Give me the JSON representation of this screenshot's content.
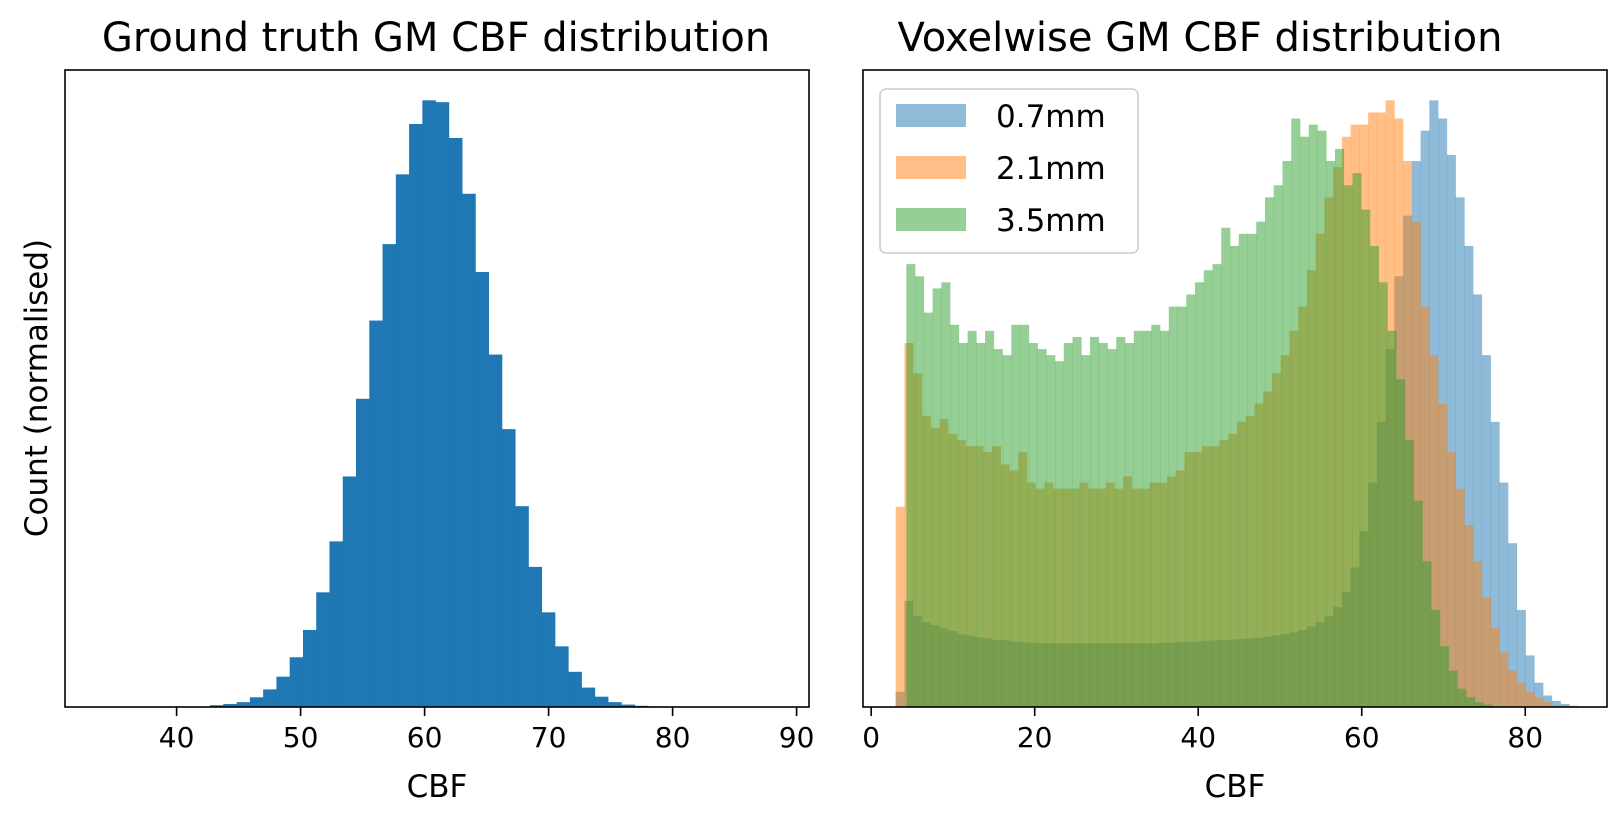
{
  "figure": {
    "colors": {
      "series_0": "#1f77b4",
      "series_1": "#ff7f0e",
      "series_2": "#2ca02c"
    }
  },
  "chart_data": [
    {
      "type": "bar",
      "title": "Ground truth GM CBF distribution",
      "xlabel": "CBF",
      "ylabel": "Count (normalised)",
      "xlim": [
        31,
        91
      ],
      "ylim": [
        0,
        1.05
      ],
      "xticks": [
        40,
        50,
        60,
        70,
        80,
        90
      ],
      "bin_width": 1.07,
      "grid": false,
      "series": [
        {
          "color": "#1f77b4",
          "alpha": 1.0,
          "bin_start": 42.7,
          "values": [
            0.003,
            0.005,
            0.008,
            0.016,
            0.029,
            0.05,
            0.082,
            0.127,
            0.189,
            0.273,
            0.38,
            0.508,
            0.637,
            0.763,
            0.878,
            0.961,
            1.0,
            0.997,
            0.938,
            0.846,
            0.717,
            0.581,
            0.458,
            0.331,
            0.231,
            0.156,
            0.1,
            0.058,
            0.032,
            0.017,
            0.008,
            0.004,
            0.002,
            0.001
          ]
        }
      ]
    },
    {
      "type": "bar",
      "title": "Voxelwise GM CBF distribution",
      "xlabel": "CBF",
      "ylabel": "",
      "xlim": [
        -1,
        90
      ],
      "ylim": [
        0,
        1.05
      ],
      "xticks": [
        0,
        20,
        40,
        60,
        80
      ],
      "bin_width": 1.07,
      "grid": false,
      "legend_position": "top-left",
      "series": [
        {
          "name": "0.7mm",
          "color": "#1f77b4",
          "alpha": 0.5,
          "bin_start": 3.0,
          "values": [
            0.025,
            0.175,
            0.15,
            0.14,
            0.135,
            0.13,
            0.125,
            0.12,
            0.118,
            0.115,
            0.113,
            0.11,
            0.11,
            0.108,
            0.107,
            0.106,
            0.105,
            0.105,
            0.105,
            0.105,
            0.105,
            0.105,
            0.105,
            0.105,
            0.105,
            0.105,
            0.105,
            0.105,
            0.105,
            0.105,
            0.106,
            0.106,
            0.107,
            0.108,
            0.108,
            0.109,
            0.11,
            0.11,
            0.111,
            0.112,
            0.113,
            0.114,
            0.116,
            0.118,
            0.12,
            0.123,
            0.127,
            0.133,
            0.14,
            0.15,
            0.165,
            0.19,
            0.23,
            0.29,
            0.37,
            0.47,
            0.59,
            0.71,
            0.81,
            0.9,
            0.95,
            1.0,
            0.97,
            0.91,
            0.84,
            0.76,
            0.68,
            0.58,
            0.47,
            0.37,
            0.27,
            0.16,
            0.085,
            0.04,
            0.019,
            0.01,
            0.005,
            0.002
          ]
        },
        {
          "name": "2.1mm",
          "color": "#ff7f0e",
          "alpha": 0.5,
          "bin_start": 3.0,
          "values": [
            0.33,
            0.6,
            0.55,
            0.48,
            0.46,
            0.475,
            0.45,
            0.44,
            0.43,
            0.43,
            0.42,
            0.43,
            0.4,
            0.39,
            0.42,
            0.37,
            0.36,
            0.37,
            0.36,
            0.36,
            0.36,
            0.37,
            0.36,
            0.36,
            0.37,
            0.36,
            0.38,
            0.36,
            0.36,
            0.37,
            0.37,
            0.38,
            0.39,
            0.42,
            0.42,
            0.43,
            0.43,
            0.44,
            0.45,
            0.47,
            0.48,
            0.5,
            0.52,
            0.55,
            0.58,
            0.62,
            0.66,
            0.72,
            0.78,
            0.84,
            0.89,
            0.94,
            0.96,
            0.96,
            0.98,
            0.98,
            1.0,
            0.97,
            0.9,
            0.8,
            0.66,
            0.58,
            0.5,
            0.42,
            0.36,
            0.3,
            0.24,
            0.18,
            0.13,
            0.09,
            0.06,
            0.04,
            0.025,
            0.015,
            0.008,
            0.003
          ]
        },
        {
          "name": "3.5mm",
          "color": "#2ca02c",
          "alpha": 0.5,
          "bin_start": 4.3,
          "values": [
            0.73,
            0.71,
            0.65,
            0.69,
            0.7,
            0.63,
            0.6,
            0.62,
            0.6,
            0.62,
            0.59,
            0.58,
            0.63,
            0.63,
            0.6,
            0.59,
            0.58,
            0.57,
            0.6,
            0.61,
            0.58,
            0.61,
            0.6,
            0.59,
            0.61,
            0.6,
            0.62,
            0.62,
            0.63,
            0.62,
            0.66,
            0.66,
            0.68,
            0.7,
            0.72,
            0.73,
            0.79,
            0.76,
            0.78,
            0.78,
            0.8,
            0.84,
            0.86,
            0.9,
            0.97,
            0.94,
            0.96,
            0.95,
            0.9,
            0.92,
            0.86,
            0.88,
            0.82,
            0.76,
            0.7,
            0.62,
            0.54,
            0.44,
            0.34,
            0.24,
            0.16,
            0.1,
            0.06,
            0.03,
            0.016,
            0.008,
            0.004
          ]
        }
      ]
    }
  ]
}
